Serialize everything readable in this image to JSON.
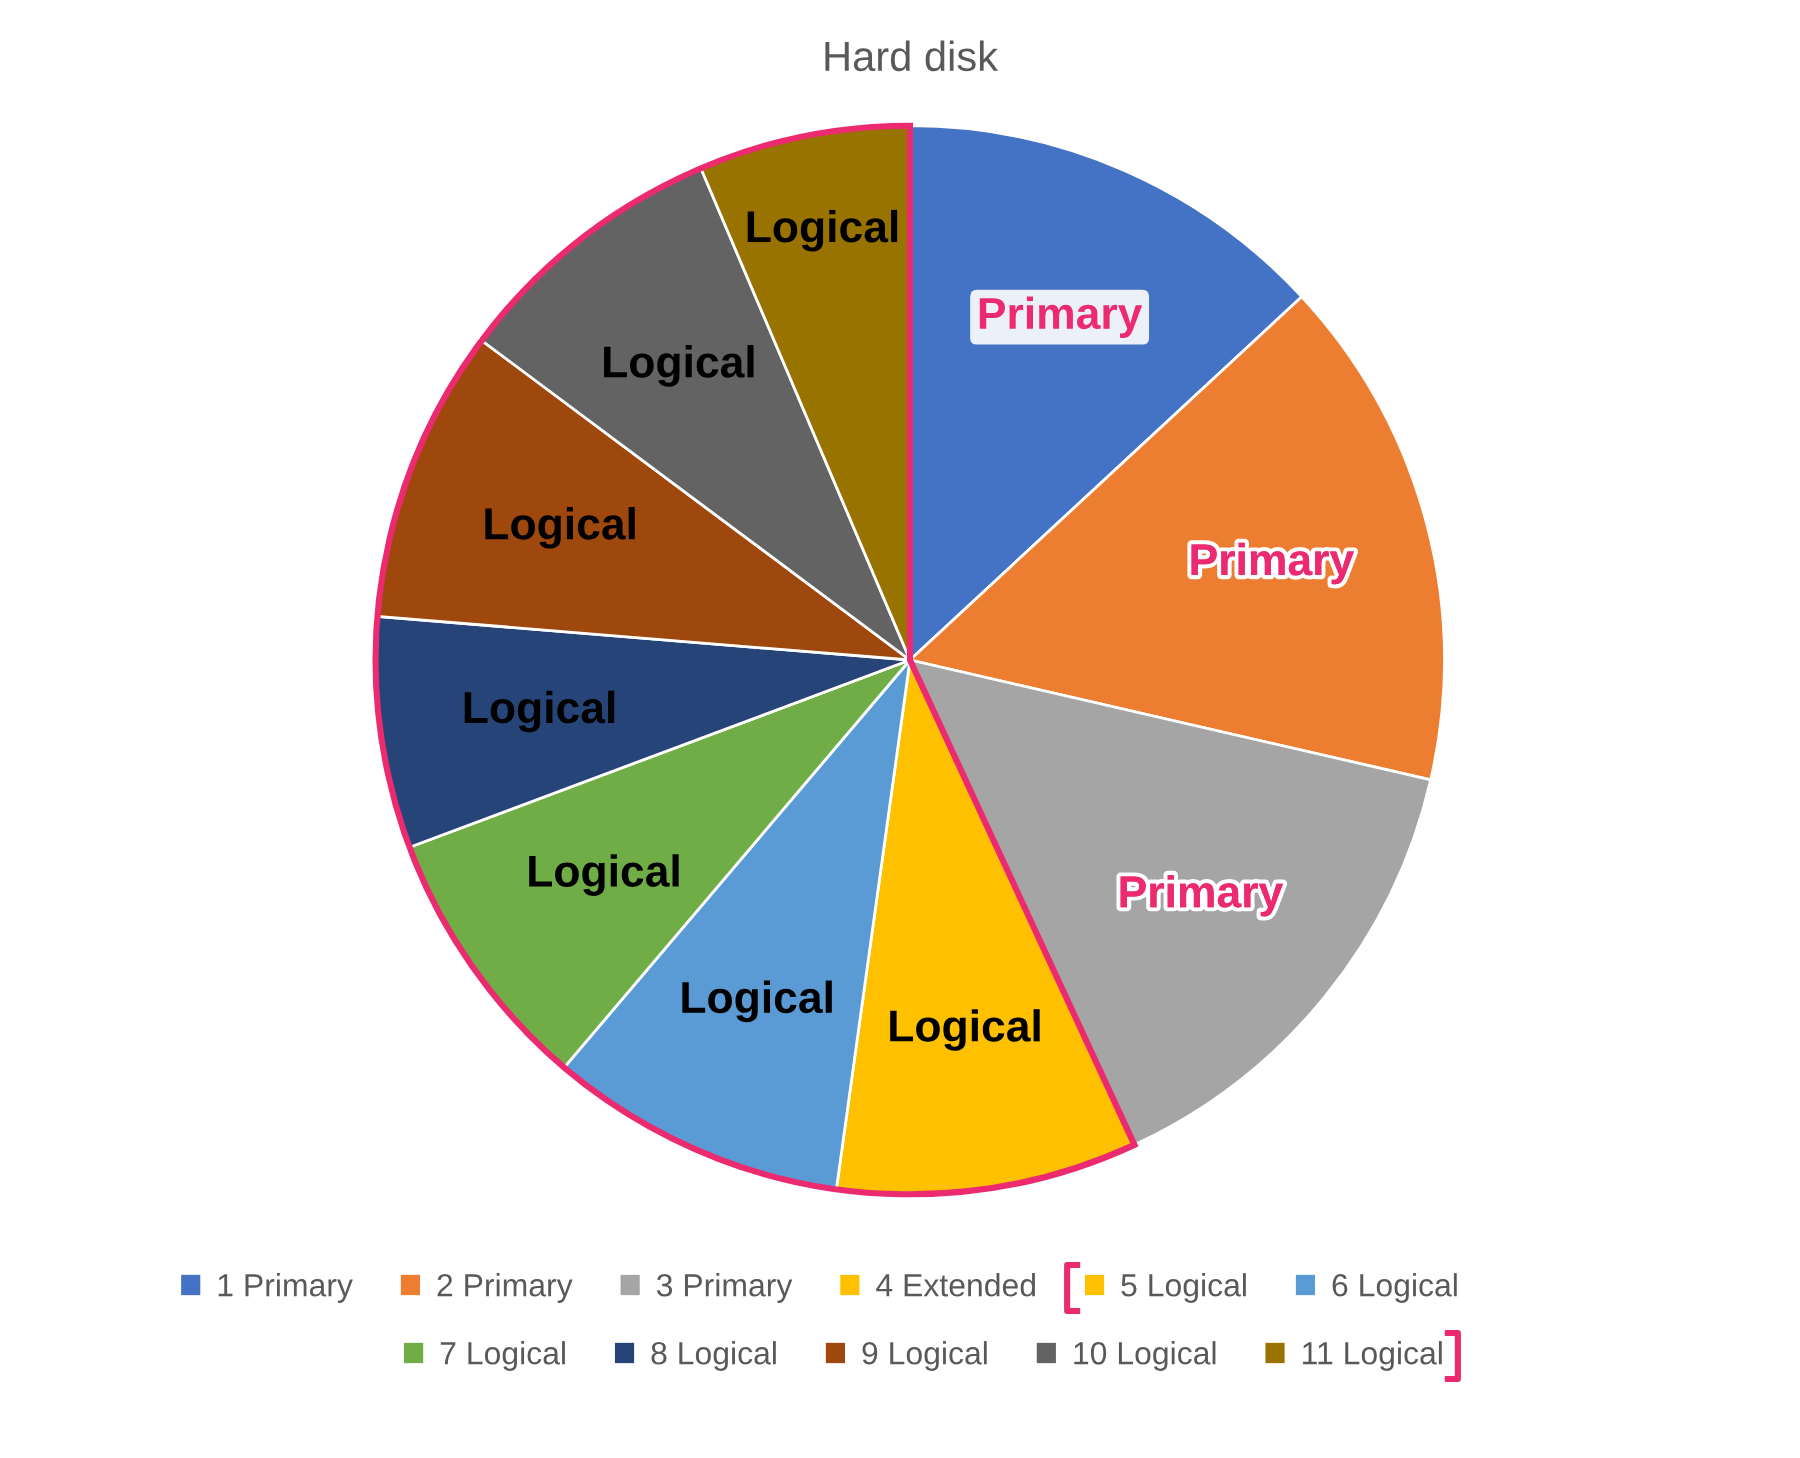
{
  "chart_data": {
    "type": "pie",
    "title": "Hard disk",
    "categories": [
      "1 Primary",
      "2 Primary",
      "3 Primary",
      "4 Extended",
      "5 Logical",
      "6 Logical",
      "7 Logical",
      "8 Logical",
      "9 Logical",
      "10 Logical",
      "11 Logical"
    ],
    "values": [
      13.1,
      15.5,
      14.5,
      0,
      9.1,
      9.0,
      8.1,
      7.0,
      8.9,
      8.4,
      6.4
    ],
    "colors": [
      "#4472c4",
      "#ed7d31",
      "#a5a5a5",
      "#ffc000",
      "#ffc000",
      "#5b9bd5",
      "#70ad47",
      "#264478",
      "#9e480e",
      "#636363",
      "#997300"
    ],
    "value_labels": [
      "Primary",
      "Primary",
      "Primary",
      null,
      "Logical",
      "Logical",
      "Logical",
      "Logical",
      "Logical",
      "Logical",
      "Logical"
    ],
    "legend": "bottom"
  }
}
